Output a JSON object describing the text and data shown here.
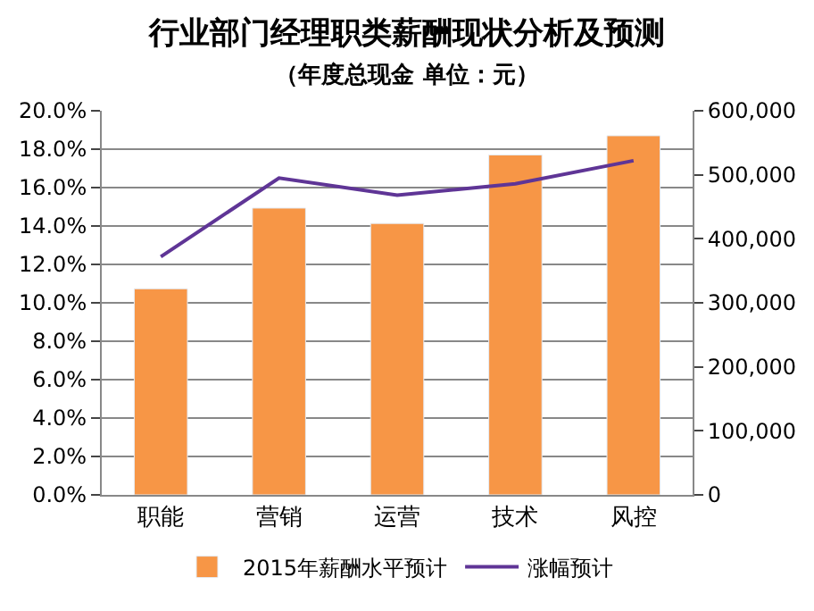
{
  "chart_data": {
    "type": "bar",
    "title": "行业部门经理职类薪酬现状分析及预测",
    "subtitle": "（年度总现金 单位：元）",
    "categories": [
      "职能",
      "营销",
      "运营",
      "技术",
      "风控"
    ],
    "series": [
      {
        "name": "2015年薪酬水平预计",
        "color": "#f79646",
        "axis": "y2",
        "values": [
          322000,
          448000,
          424000,
          531000,
          561000
        ]
      },
      {
        "name": "涨幅预计",
        "type": "line",
        "color": "#5f3596",
        "axis": "y",
        "values": [
          12.4,
          16.5,
          15.6,
          16.2,
          17.4
        ]
      }
    ],
    "ylim": [
      0,
      20
    ],
    "yticks": [
      {
        "value": 0,
        "label": "0.0%"
      },
      {
        "value": 2,
        "label": "2.0%"
      },
      {
        "value": 4,
        "label": "4.0%"
      },
      {
        "value": 6,
        "label": "6.0%"
      },
      {
        "value": 8,
        "label": "8.0%"
      },
      {
        "value": 10,
        "label": "10.0%"
      },
      {
        "value": 12,
        "label": "12.0%"
      },
      {
        "value": 14,
        "label": "14.0%"
      },
      {
        "value": 16,
        "label": "16.0%"
      },
      {
        "value": 18,
        "label": "18.0%"
      },
      {
        "value": 20,
        "label": "20.0%"
      }
    ],
    "y2lim": [
      0,
      600000
    ],
    "y2ticks": [
      {
        "value": 0,
        "label": "0"
      },
      {
        "value": 100000,
        "label": "100,000"
      },
      {
        "value": 200000,
        "label": "200,000"
      },
      {
        "value": 300000,
        "label": "300,000"
      },
      {
        "value": 400000,
        "label": "400,000"
      },
      {
        "value": 500000,
        "label": "500,000"
      },
      {
        "value": 600000,
        "label": "600,000"
      }
    ],
    "grid": "y",
    "legend": "bottom",
    "marker": "none",
    "line_style": "solid"
  }
}
